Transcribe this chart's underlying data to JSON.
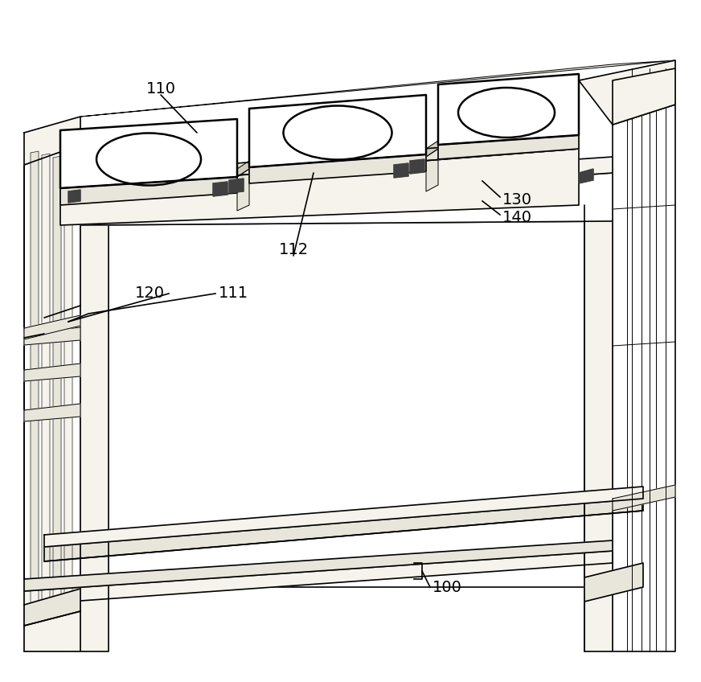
{
  "background_color": "#ffffff",
  "line_color": "#000000",
  "fill_white": "#ffffff",
  "fill_light": "#f5f3ec",
  "fill_med": "#e8e5db",
  "fill_dark": "#d0cdc0",
  "fill_gray": "#b0aca0",
  "lw_thick": 1.8,
  "lw_med": 1.2,
  "lw_thin": 0.7,
  "figsize": [
    8.72,
    8.48
  ],
  "dpi": 100
}
